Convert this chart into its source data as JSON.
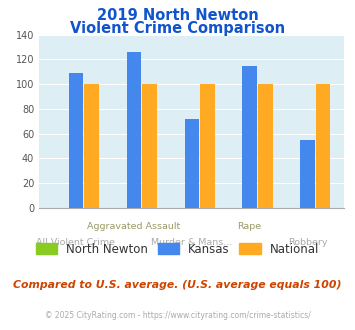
{
  "title_line1": "2019 North Newton",
  "title_line2": "Violent Crime Comparison",
  "categories": [
    "All Violent Crime",
    "Aggravated Assault",
    "Murder & Mans...",
    "Rape",
    "Robbery"
  ],
  "series": {
    "North Newton": [
      0,
      0,
      0,
      0,
      0
    ],
    "Kansas": [
      109,
      126,
      72,
      115,
      55
    ],
    "National": [
      100,
      100,
      100,
      100,
      100
    ]
  },
  "colors": {
    "North Newton": "#88cc22",
    "Kansas": "#4488ee",
    "National": "#ffaa22"
  },
  "ylim": [
    0,
    140
  ],
  "yticks": [
    0,
    20,
    40,
    60,
    80,
    100,
    120,
    140
  ],
  "plot_bg": "#ddeef4",
  "title_color": "#1155cc",
  "top_label_color": "#999966",
  "bottom_label_color": "#aaaaaa",
  "footer_text": "Compared to U.S. average. (U.S. average equals 100)",
  "footer_color": "#cc4400",
  "copyright_text": "© 2025 CityRating.com - https://www.cityrating.com/crime-statistics/",
  "copyright_color": "#aaaaaa",
  "bar_width": 0.27
}
